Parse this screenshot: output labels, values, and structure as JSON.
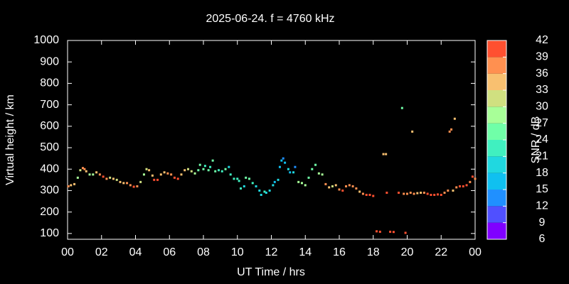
{
  "chart_data": {
    "type": "scatter",
    "title": "2025-06-24. f = 4760 kHz",
    "xlabel": "UT Time / hrs",
    "ylabel": "Virtual height / km",
    "colorbar_label": "SNR / dB",
    "xlim": [
      0,
      24
    ],
    "xticks": [
      {
        "value": 0,
        "label": "00"
      },
      {
        "value": 2,
        "label": "02"
      },
      {
        "value": 4,
        "label": "04"
      },
      {
        "value": 6,
        "label": "06"
      },
      {
        "value": 8,
        "label": "08"
      },
      10,
      12,
      14,
      16,
      18,
      20,
      22,
      {
        "value": 24,
        "label": "00"
      }
    ],
    "ylim": [
      73,
      1000
    ],
    "yticks": [
      100,
      200,
      300,
      400,
      500,
      600,
      700,
      800,
      900,
      1000
    ],
    "cblim": [
      6,
      42
    ],
    "cbticks": [
      6,
      9,
      12,
      15,
      18,
      21,
      24,
      27,
      30,
      33,
      36,
      39,
      42
    ],
    "colorscale": [
      "#8000ff",
      "#5050ff",
      "#2090ff",
      "#10c0f0",
      "#20d8e0",
      "#40f0c0",
      "#70ffa8",
      "#a8ff98",
      "#d0e080",
      "#f8c070",
      "#ff9050",
      "#ff5030",
      "#ff0000"
    ],
    "x": [
      0.05,
      0.2,
      0.4,
      0.6,
      0.75,
      0.9,
      1.0,
      1.1,
      1.3,
      1.5,
      1.7,
      1.9,
      2.1,
      2.3,
      2.5,
      2.7,
      2.9,
      3.1,
      3.3,
      3.5,
      3.7,
      3.9,
      4.1,
      4.3,
      4.5,
      4.65,
      4.8,
      5.0,
      5.1,
      5.3,
      5.5,
      5.7,
      5.9,
      6.1,
      6.3,
      6.5,
      6.7,
      6.9,
      7.1,
      7.3,
      7.5,
      7.7,
      7.8,
      8.0,
      8.1,
      8.3,
      8.4,
      8.55,
      8.7,
      8.9,
      9.1,
      9.3,
      9.5,
      9.6,
      9.8,
      10.0,
      10.1,
      10.2,
      10.4,
      10.5,
      10.7,
      10.9,
      11.1,
      11.3,
      11.4,
      11.6,
      11.7,
      11.9,
      12.1,
      12.2,
      12.4,
      12.5,
      12.6,
      12.7,
      12.8,
      13.0,
      13.1,
      13.3,
      13.4,
      13.6,
      13.8,
      14.0,
      14.2,
      14.4,
      14.6,
      14.8,
      15.0,
      15.2,
      15.4,
      15.6,
      15.8,
      16.0,
      16.2,
      16.4,
      16.6,
      16.8,
      17.0,
      17.2,
      17.4,
      17.6,
      17.8,
      18.0,
      18.2,
      18.4,
      18.6,
      18.75,
      18.8,
      19.0,
      19.2,
      19.5,
      19.7,
      19.8,
      19.9,
      20.0,
      20.2,
      20.3,
      20.4,
      20.6,
      20.8,
      21.0,
      21.2,
      21.4,
      21.6,
      21.8,
      22.0,
      22.2,
      22.4,
      22.5,
      22.6,
      22.7,
      22.8,
      22.9,
      23.1,
      23.3,
      23.5,
      23.7,
      23.85,
      24.0
    ],
    "values": [
      320,
      325,
      330,
      360,
      395,
      405,
      400,
      390,
      375,
      375,
      385,
      375,
      365,
      355,
      360,
      355,
      350,
      340,
      335,
      335,
      325,
      318,
      320,
      340,
      375,
      400,
      395,
      370,
      350,
      350,
      375,
      385,
      380,
      375,
      360,
      355,
      375,
      395,
      400,
      390,
      380,
      395,
      420,
      400,
      415,
      395,
      410,
      440,
      390,
      395,
      390,
      400,
      410,
      375,
      355,
      355,
      345,
      310,
      320,
      360,
      355,
      335,
      320,
      300,
      280,
      295,
      290,
      300,
      325,
      340,
      350,
      410,
      440,
      450,
      430,
      400,
      385,
      385,
      410,
      340,
      335,
      325,
      360,
      400,
      420,
      380,
      375,
      330,
      315,
      320,
      325,
      305,
      300,
      320,
      325,
      320,
      310,
      295,
      285,
      280,
      280,
      275,
      110,
      108,
      470,
      470,
      290,
      108,
      107,
      290,
      685,
      285,
      103,
      285,
      290,
      575,
      285,
      288,
      290,
      290,
      285,
      280,
      280,
      282,
      280,
      290,
      300,
      575,
      585,
      300,
      635,
      315,
      320,
      320,
      325,
      340,
      365,
      355
    ],
    "snr": [
      37,
      34,
      34,
      28,
      31,
      37,
      37,
      34,
      28,
      28,
      34,
      37,
      40,
      37,
      31,
      34,
      31,
      34,
      34,
      37,
      37,
      40,
      37,
      31,
      28,
      31,
      34,
      34,
      40,
      40,
      34,
      34,
      37,
      37,
      40,
      40,
      34,
      34,
      31,
      31,
      28,
      25,
      25,
      25,
      22,
      25,
      22,
      25,
      25,
      22,
      22,
      25,
      19,
      22,
      22,
      22,
      22,
      22,
      19,
      25,
      25,
      22,
      19,
      19,
      19,
      22,
      19,
      19,
      19,
      16,
      19,
      16,
      16,
      13,
      16,
      19,
      16,
      19,
      13,
      28,
      28,
      28,
      25,
      25,
      25,
      28,
      28,
      37,
      34,
      31,
      34,
      37,
      40,
      37,
      37,
      37,
      37,
      34,
      37,
      40,
      40,
      40,
      40,
      40,
      34,
      34,
      40,
      40,
      40,
      40,
      25,
      37,
      40,
      37,
      37,
      34,
      37,
      34,
      34,
      37,
      40,
      40,
      40,
      40,
      40,
      37,
      37,
      37,
      37,
      34,
      34,
      37,
      40,
      40,
      40,
      37,
      40,
      37
    ]
  }
}
